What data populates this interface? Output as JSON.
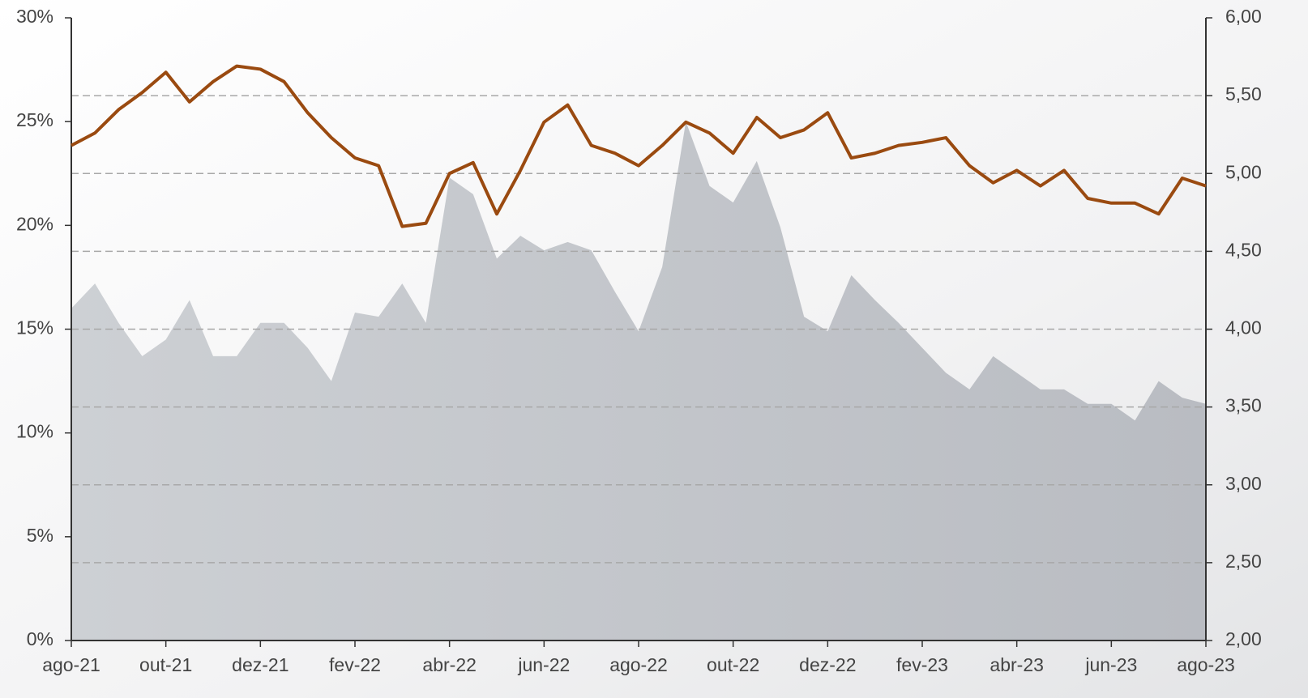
{
  "chart_data": {
    "type": "line",
    "x": [
      0,
      0.5,
      1,
      1.5,
      2,
      2.5,
      3,
      3.5,
      4,
      4.5,
      5,
      5.5,
      6,
      6.5,
      7,
      7.5,
      8,
      8.5,
      9,
      9.5,
      10,
      10.5,
      11,
      11.5,
      12,
      12.5,
      13,
      13.5,
      14,
      14.5,
      15,
      15.5,
      16,
      16.5,
      17,
      17.5,
      18,
      18.5,
      19,
      19.5,
      20,
      20.5,
      21,
      21.5,
      22,
      22.5,
      23,
      23.5,
      24
    ],
    "series": [
      {
        "name": "area",
        "kind": "area",
        "color": "#c3c6cb",
        "values": [
          16.0,
          17.2,
          15.3,
          13.7,
          14.5,
          16.4,
          13.7,
          13.7,
          15.3,
          15.3,
          14.1,
          12.5,
          15.8,
          15.6,
          17.2,
          15.3,
          22.3,
          21.5,
          18.4,
          19.5,
          18.8,
          19.2,
          18.8,
          16.8,
          14.9,
          18.0,
          25.0,
          21.9,
          21.1,
          23.1,
          19.9,
          15.6,
          14.9,
          17.6,
          16.4,
          15.3,
          14.1,
          12.9,
          12.1,
          13.7,
          12.9,
          12.1,
          12.1,
          11.4,
          11.4,
          10.6,
          12.5,
          11.7,
          11.4
        ]
      },
      {
        "name": "line",
        "axis": "y2",
        "color": "#9a4a10",
        "values": [
          5.18,
          5.26,
          5.41,
          5.52,
          5.65,
          5.46,
          5.59,
          5.69,
          5.67,
          5.59,
          5.39,
          5.23,
          5.1,
          5.05,
          4.66,
          4.68,
          5.0,
          5.07,
          4.74,
          5.02,
          5.33,
          5.44,
          5.18,
          5.13,
          5.05,
          5.18,
          5.33,
          5.26,
          5.13,
          5.36,
          5.23,
          5.28,
          5.39,
          5.1,
          5.13,
          5.18,
          5.2,
          5.23,
          5.05,
          4.94,
          5.02,
          4.92,
          5.02,
          4.84,
          4.81,
          4.81,
          4.74,
          4.97,
          4.92
        ]
      }
    ],
    "xlim": [
      0,
      24
    ],
    "xticks": [
      {
        "value": 0,
        "label": "ago-21"
      },
      {
        "value": 2,
        "label": "out-21"
      },
      {
        "value": 4,
        "label": "dez-21"
      },
      {
        "value": 6,
        "label": "fev-22"
      },
      {
        "value": 8,
        "label": "abr-22"
      },
      {
        "value": 10,
        "label": "jun-22"
      },
      {
        "value": 12,
        "label": "ago-22"
      },
      {
        "value": 14,
        "label": "out-22"
      },
      {
        "value": 16,
        "label": "dez-22"
      },
      {
        "value": 18,
        "label": "fev-23"
      },
      {
        "value": 20,
        "label": "abr-23"
      },
      {
        "value": 22,
        "label": "jun-23"
      },
      {
        "value": 24,
        "label": "ago-23"
      }
    ],
    "ylim": [
      0,
      30
    ],
    "yticks": [
      {
        "value": 0,
        "label": "0%"
      },
      {
        "value": 5,
        "label": "5%"
      },
      {
        "value": 10,
        "label": "10%"
      },
      {
        "value": 15,
        "label": "15%"
      },
      {
        "value": 20,
        "label": "20%"
      },
      {
        "value": 25,
        "label": "25%"
      },
      {
        "value": 30,
        "label": "30%"
      }
    ],
    "y2lim": [
      2,
      6
    ],
    "y2ticks": [
      {
        "value": 2,
        "label": "2,00"
      },
      {
        "value": 2.5,
        "label": "2,50"
      },
      {
        "value": 3,
        "label": "3,00"
      },
      {
        "value": 3.5,
        "label": "3,50"
      },
      {
        "value": 4,
        "label": "4,00"
      },
      {
        "value": 4.5,
        "label": "4,50"
      },
      {
        "value": 5,
        "label": "5,00"
      },
      {
        "value": 5.5,
        "label": "5,50"
      },
      {
        "value": 6,
        "label": "6,00"
      }
    ],
    "grid": true
  }
}
